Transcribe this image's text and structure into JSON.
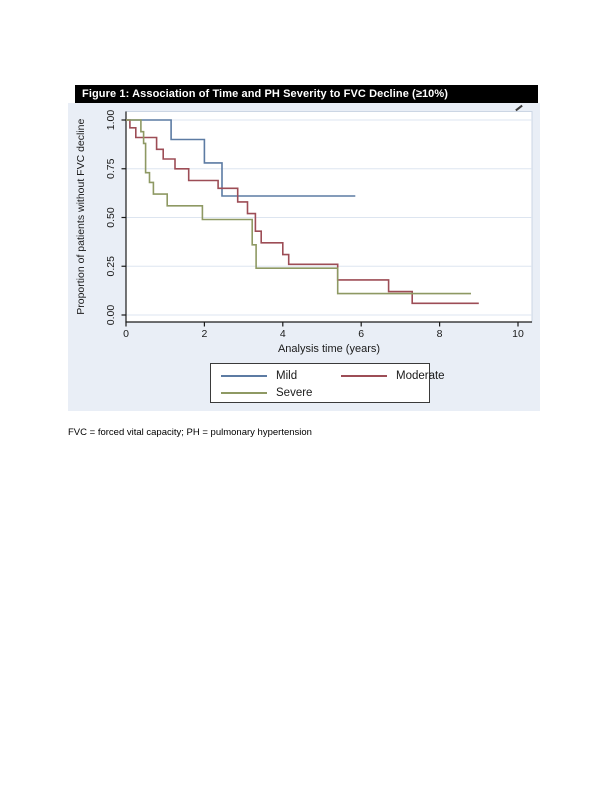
{
  "figure": {
    "title": "Figure 1: Association of Time and PH Severity to FVC Decline (≥10%)",
    "footnote": "FVC = forced vital capacity; PH = pulmonary hypertension",
    "colors": {
      "title_bg": "#000000",
      "title_text": "#ffffff",
      "figure_bg": "#e9eef6",
      "plot_bg": "#ffffff",
      "plot_border": "#ccd6e4",
      "grid": "#dde5f0",
      "axis": "#1a1a1a",
      "text": "#1a1a1a",
      "mild": "#5c7ba3",
      "moderate": "#9d4d56",
      "severe": "#8e9963"
    }
  },
  "chart_data": {
    "type": "line",
    "subtype": "kaplan-meier-step",
    "title": "Figure 1: Association of Time and PH Severity to FVC Decline (≥10%)",
    "xlabel": "Analysis time (years)",
    "ylabel": "Proportion of patients without FVC decline",
    "xlim": [
      0,
      10
    ],
    "ylim": [
      0.0,
      1.0
    ],
    "xticks": [
      0,
      2,
      4,
      6,
      8,
      10
    ],
    "yticks": [
      "0.00",
      "0.25",
      "0.50",
      "0.75",
      "1.00"
    ],
    "grid": true,
    "legend_position": "bottom",
    "legend": [
      "Mild",
      "Moderate",
      "Severe"
    ],
    "series": [
      {
        "name": "Mild",
        "color": "#5c7ba3",
        "points": [
          [
            0,
            1.0
          ],
          [
            1.15,
            1.0
          ],
          [
            1.15,
            0.9
          ],
          [
            2.0,
            0.9
          ],
          [
            2.0,
            0.78
          ],
          [
            2.45,
            0.78
          ],
          [
            2.45,
            0.61
          ],
          [
            5.85,
            0.61
          ]
        ]
      },
      {
        "name": "Moderate",
        "color": "#9d4d56",
        "points": [
          [
            0,
            1.0
          ],
          [
            0.1,
            1.0
          ],
          [
            0.1,
            0.96
          ],
          [
            0.25,
            0.96
          ],
          [
            0.25,
            0.91
          ],
          [
            0.78,
            0.91
          ],
          [
            0.78,
            0.85
          ],
          [
            0.95,
            0.85
          ],
          [
            0.95,
            0.8
          ],
          [
            1.25,
            0.8
          ],
          [
            1.25,
            0.75
          ],
          [
            1.6,
            0.75
          ],
          [
            1.6,
            0.69
          ],
          [
            2.35,
            0.69
          ],
          [
            2.35,
            0.65
          ],
          [
            2.85,
            0.65
          ],
          [
            2.85,
            0.58
          ],
          [
            3.1,
            0.58
          ],
          [
            3.1,
            0.52
          ],
          [
            3.3,
            0.52
          ],
          [
            3.3,
            0.43
          ],
          [
            3.45,
            0.43
          ],
          [
            3.45,
            0.37
          ],
          [
            4.0,
            0.37
          ],
          [
            4.0,
            0.31
          ],
          [
            4.15,
            0.31
          ],
          [
            4.15,
            0.26
          ],
          [
            5.4,
            0.26
          ],
          [
            5.4,
            0.18
          ],
          [
            6.7,
            0.18
          ],
          [
            6.7,
            0.12
          ],
          [
            7.3,
            0.12
          ],
          [
            7.3,
            0.06
          ],
          [
            9.0,
            0.06
          ]
        ]
      },
      {
        "name": "Severe",
        "color": "#8e9963",
        "points": [
          [
            0,
            1.0
          ],
          [
            0.38,
            1.0
          ],
          [
            0.38,
            0.94
          ],
          [
            0.45,
            0.94
          ],
          [
            0.45,
            0.88
          ],
          [
            0.5,
            0.88
          ],
          [
            0.5,
            0.73
          ],
          [
            0.6,
            0.73
          ],
          [
            0.6,
            0.68
          ],
          [
            0.7,
            0.68
          ],
          [
            0.7,
            0.62
          ],
          [
            1.05,
            0.62
          ],
          [
            1.05,
            0.56
          ],
          [
            1.95,
            0.56
          ],
          [
            1.95,
            0.49
          ],
          [
            3.22,
            0.49
          ],
          [
            3.22,
            0.36
          ],
          [
            3.32,
            0.36
          ],
          [
            3.32,
            0.24
          ],
          [
            5.4,
            0.24
          ],
          [
            5.4,
            0.11
          ],
          [
            8.8,
            0.11
          ]
        ]
      }
    ]
  }
}
